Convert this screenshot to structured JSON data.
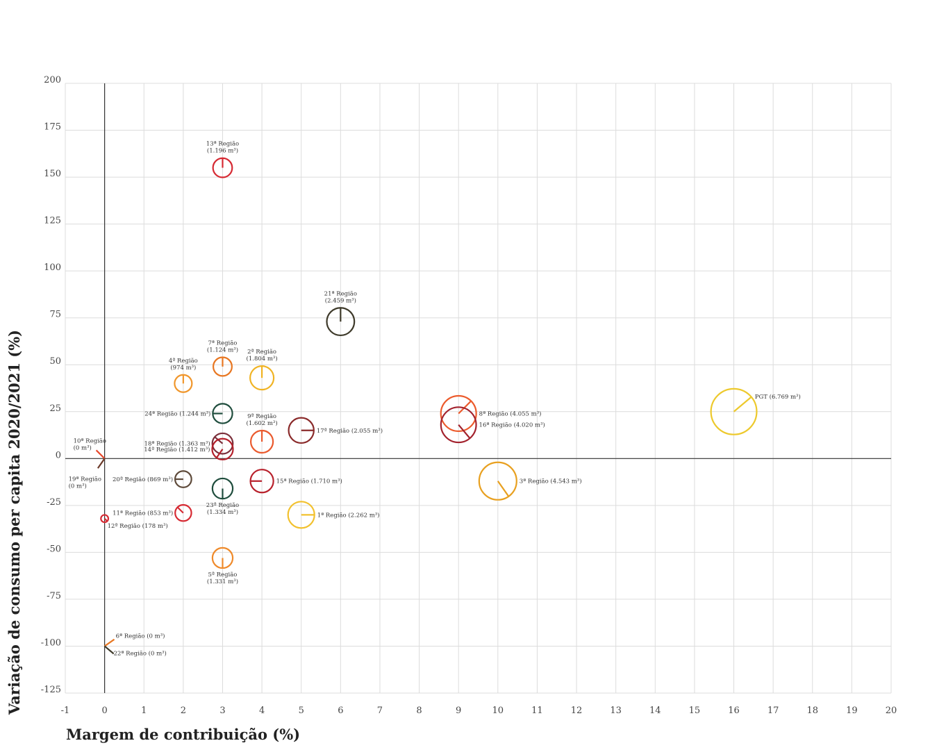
{
  "chart_data": {
    "type": "scatter",
    "xlabel": "Margem de contribuição (%)",
    "ylabel": "Variação de consumo per capita 2020/2021 (%)",
    "xlim": [
      -1,
      20
    ],
    "ylim": [
      -125,
      200
    ],
    "xticks": [
      "-1",
      "0",
      "1",
      "2",
      "3",
      "4",
      "5",
      "6",
      "7",
      "8",
      "9",
      "10",
      "11",
      "12",
      "13",
      "14",
      "15",
      "16",
      "17",
      "18",
      "19",
      "20"
    ],
    "yticks": [
      "200",
      "175",
      "150",
      "125",
      "100",
      "75",
      "50",
      "25",
      "0",
      "-25",
      "-50",
      "-75",
      "-100",
      "-125"
    ],
    "grid": true,
    "points": [
      {
        "name": "13ª Região",
        "volume": "(1.196 m³)",
        "x": 3,
        "y": 155,
        "size": 1196,
        "color": "#d62a33",
        "angle": 0,
        "label_pos": "top"
      },
      {
        "name": "21ª Região",
        "volume": "(2.459 m³)",
        "x": 6,
        "y": 73,
        "size": 2459,
        "color": "#3e3a2a",
        "angle": 0,
        "label_pos": "top"
      },
      {
        "name": "7ª Região",
        "volume": "(1.124 m³)",
        "x": 3,
        "y": 49,
        "size": 1124,
        "color": "#e87722",
        "angle": 0,
        "label_pos": "top"
      },
      {
        "name": "2ª Região",
        "volume": "(1.804 m³)",
        "x": 4,
        "y": 43,
        "size": 1804,
        "color": "#f0b323",
        "angle": 0,
        "label_pos": "top"
      },
      {
        "name": "4ª Região",
        "volume": "(974 m³)",
        "x": 2,
        "y": 40,
        "size": 974,
        "color": "#f0962b",
        "angle": 0,
        "label_pos": "top"
      },
      {
        "name": "24ª Região",
        "volume": "(1.244 m³)",
        "x": 3,
        "y": 24,
        "size": 1244,
        "color": "#1f4d3d",
        "angle": 270,
        "label_pos": "left"
      },
      {
        "name": "8ª Região",
        "volume": "(4.055 m³)",
        "x": 9,
        "y": 24,
        "size": 4055,
        "color": "#ec5b2c",
        "angle": 45,
        "label_pos": "right"
      },
      {
        "name": "PGT",
        "volume": "(6.769 m³)",
        "x": 16,
        "y": 25,
        "size": 6769,
        "color": "#edc92c",
        "angle": 50,
        "label_pos": "right"
      },
      {
        "name": "16ª Região",
        "volume": "(4.020 m³)",
        "x": 9,
        "y": 18,
        "size": 4020,
        "color": "#a3232e",
        "angle": 140,
        "label_pos": "right"
      },
      {
        "name": "17ª Região",
        "volume": "(2.055 m³)",
        "x": 5,
        "y": 15,
        "size": 2055,
        "color": "#8a2a2a",
        "angle": 90,
        "label_pos": "right"
      },
      {
        "name": "9ª Região",
        "volume": "(1.602 m³)",
        "x": 4,
        "y": 9,
        "size": 1602,
        "color": "#ea5a2e",
        "angle": 0,
        "label_pos": "top"
      },
      {
        "name": "18ª Região",
        "volume": "(1.363 m³)",
        "x": 3,
        "y": 8,
        "size": 1363,
        "color": "#7a2e3a",
        "angle": 310,
        "label_pos": "left"
      },
      {
        "name": "14ª Região",
        "volume": "(1.412 m³)",
        "x": 3,
        "y": 5,
        "size": 1412,
        "color": "#b3202b",
        "angle": 215,
        "label_pos": "left"
      },
      {
        "name": "10ª Região",
        "volume": "(0 m³)",
        "x": 0,
        "y": 0,
        "size": 0,
        "color": "#e8492c",
        "angle": 315,
        "label_pos": "left-top"
      },
      {
        "name": "19ª Região",
        "volume": "(0 m³)",
        "x": 0,
        "y": 0,
        "size": 0,
        "color": "#6b3a2a",
        "angle": 215,
        "label_pos": "left-bottom"
      },
      {
        "name": "20ª Região",
        "volume": "(869 m³)",
        "x": 2,
        "y": -11,
        "size": 869,
        "color": "#5e4a3a",
        "angle": 270,
        "label_pos": "left"
      },
      {
        "name": "15ª Região",
        "volume": "(1.710 m³)",
        "x": 4,
        "y": -12,
        "size": 1710,
        "color": "#b8212c",
        "angle": 270,
        "label_pos": "right"
      },
      {
        "name": "3ª Região",
        "volume": "(4.543 m³)",
        "x": 10,
        "y": -12,
        "size": 4543,
        "color": "#e8a020",
        "angle": 145,
        "label_pos": "right"
      },
      {
        "name": "23ª Região",
        "volume": "(1.334 m³)",
        "x": 3,
        "y": -16,
        "size": 1334,
        "color": "#1f4d3d",
        "angle": 180,
        "label_pos": "bottom"
      },
      {
        "name": "11ª Região",
        "volume": "(853 m³)",
        "x": 2,
        "y": -29,
        "size": 853,
        "color": "#d62a33",
        "angle": 315,
        "label_pos": "left"
      },
      {
        "name": "1ª Região",
        "volume": "(2.262 m³)",
        "x": 5,
        "y": -30,
        "size": 2262,
        "color": "#f2c12e",
        "angle": 90,
        "label_pos": "right"
      },
      {
        "name": "12ª Região",
        "volume": "(178 m³)",
        "x": 0,
        "y": -32,
        "size": 178,
        "color": "#d62a33",
        "angle": 135,
        "label_pos": "right-bottom"
      },
      {
        "name": "5ª Região",
        "volume": "(1.331 m³)",
        "x": 3,
        "y": -53,
        "size": 1331,
        "color": "#ef8a2a",
        "angle": 180,
        "label_pos": "bottom"
      },
      {
        "name": "6ª Região",
        "volume": "(0 m³)",
        "x": 0,
        "y": -100,
        "size": 0,
        "color": "#e87722",
        "angle": 55,
        "label_pos": "right-top"
      },
      {
        "name": "22ª Região",
        "volume": "(0 m³)",
        "x": 0,
        "y": -100,
        "size": 0,
        "color": "#3e3a2a",
        "angle": 130,
        "label_pos": "right-bottom"
      }
    ]
  }
}
